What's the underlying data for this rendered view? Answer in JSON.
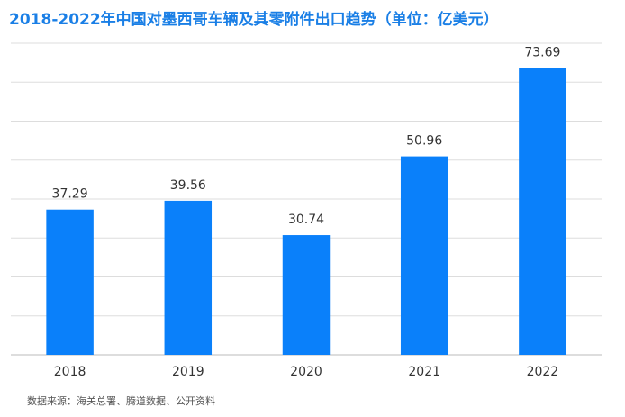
{
  "chart_data": {
    "type": "bar",
    "title": "2018-2022年中国对墨西哥车辆及其零附件出口趋势（单位：亿美元）",
    "categories": [
      "2018",
      "2019",
      "2020",
      "2021",
      "2022"
    ],
    "values": [
      37.29,
      39.56,
      30.74,
      50.96,
      73.69
    ],
    "color": "#0a80fa",
    "ylim": [
      0,
      80
    ],
    "yticks": [
      0,
      10,
      20,
      30,
      40,
      50,
      60,
      70,
      80
    ],
    "grid": true,
    "show_tick_labels": false,
    "source": "数据来源：海关总署、腾道数据、公开资料"
  }
}
